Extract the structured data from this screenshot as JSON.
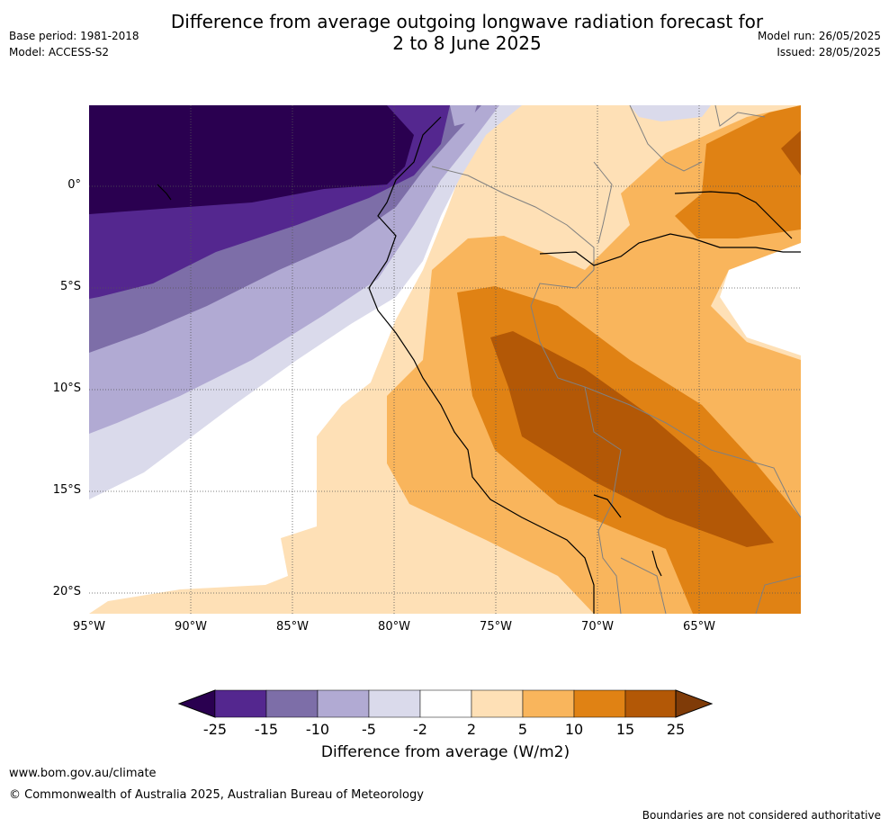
{
  "header": {
    "title_line1": "Difference from average outgoing longwave radiation forecast for",
    "title_line2": "2 to 8 June 2025",
    "base_period": "Base period: 1981-2018",
    "model": "Model: ACCESS-S2",
    "model_run": "Model run: 26/05/2025",
    "issued": "Issued: 28/05/2025"
  },
  "map": {
    "lat_labels": [
      "0°",
      "5°S",
      "10°S",
      "15°S",
      "20°S"
    ],
    "lon_labels": [
      "95°W",
      "90°W",
      "85°W",
      "80°W",
      "75°W",
      "70°W",
      "65°W"
    ],
    "lon_range": [
      -95,
      -60
    ],
    "lat_range": [
      -21,
      4
    ],
    "gridlines": true,
    "colors": {
      "neg25": "#2a0050",
      "neg15": "#54278f",
      "neg10": "#7d6ea8",
      "neg5": "#b1aad3",
      "neg2": "#dadaeb",
      "zero": "#ffffff",
      "pos2": "#fee0b6",
      "pos5": "#f9b55c",
      "pos10": "#e08214",
      "pos15": "#b35806",
      "pos25": "#7f3b08"
    }
  },
  "colorbar": {
    "ticks": [
      "-25",
      "-15",
      "-10",
      "-5",
      "-2",
      "2",
      "5",
      "10",
      "15",
      "25"
    ],
    "colors": [
      "#54278f",
      "#7d6ea8",
      "#b1aad3",
      "#dadaeb",
      "#ffffff",
      "#fee0b6",
      "#f9b55c",
      "#e08214",
      "#b35806"
    ],
    "low_extend_color": "#2a0050",
    "high_extend_color": "#7f3b08",
    "label": "Difference from average (W/m2)"
  },
  "footer": {
    "url": "www.bom.gov.au/climate",
    "copyright": "© Commonwealth of Australia 2025, Australian Bureau of Meteorology",
    "disclaimer": "Boundaries are not considered authoritative"
  }
}
